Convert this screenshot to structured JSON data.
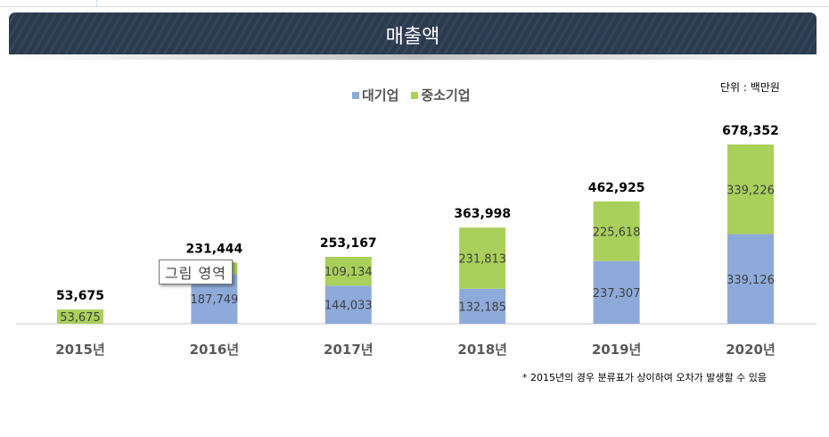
{
  "header": {
    "title": "매출액"
  },
  "unit_label": "단위 : 백만원",
  "note": "* 2015년의 경우 분류표가 상이하여 오차가 발생할 수 있음",
  "tooltip": "그림 영역",
  "chart_data": {
    "type": "bar",
    "stacked": true,
    "title": "매출액",
    "categories": [
      "2015년",
      "2016년",
      "2017년",
      "2018년",
      "2019년",
      "2020년"
    ],
    "series": [
      {
        "name": "대기업",
        "color": "#8eaadb",
        "values": [
          0,
          187749,
          144033,
          132185,
          237307,
          339126
        ],
        "labels": [
          null,
          "187,749",
          "144,033",
          "132,185",
          "237,307",
          "339,126"
        ]
      },
      {
        "name": "중소기업",
        "color": "#a9d05a",
        "values": [
          53675,
          43695,
          109134,
          231813,
          225618,
          339226
        ],
        "labels": [
          "53,675",
          null,
          "109,134",
          "231,813",
          "225,618",
          "339,226"
        ]
      }
    ],
    "totals": [
      "53,675",
      "231,444",
      "253,167",
      "363,998",
      "462,925",
      "678,352"
    ],
    "total_values": [
      53675,
      231444,
      253167,
      363998,
      462925,
      678352
    ],
    "legend_position": "top",
    "grid": false
  }
}
